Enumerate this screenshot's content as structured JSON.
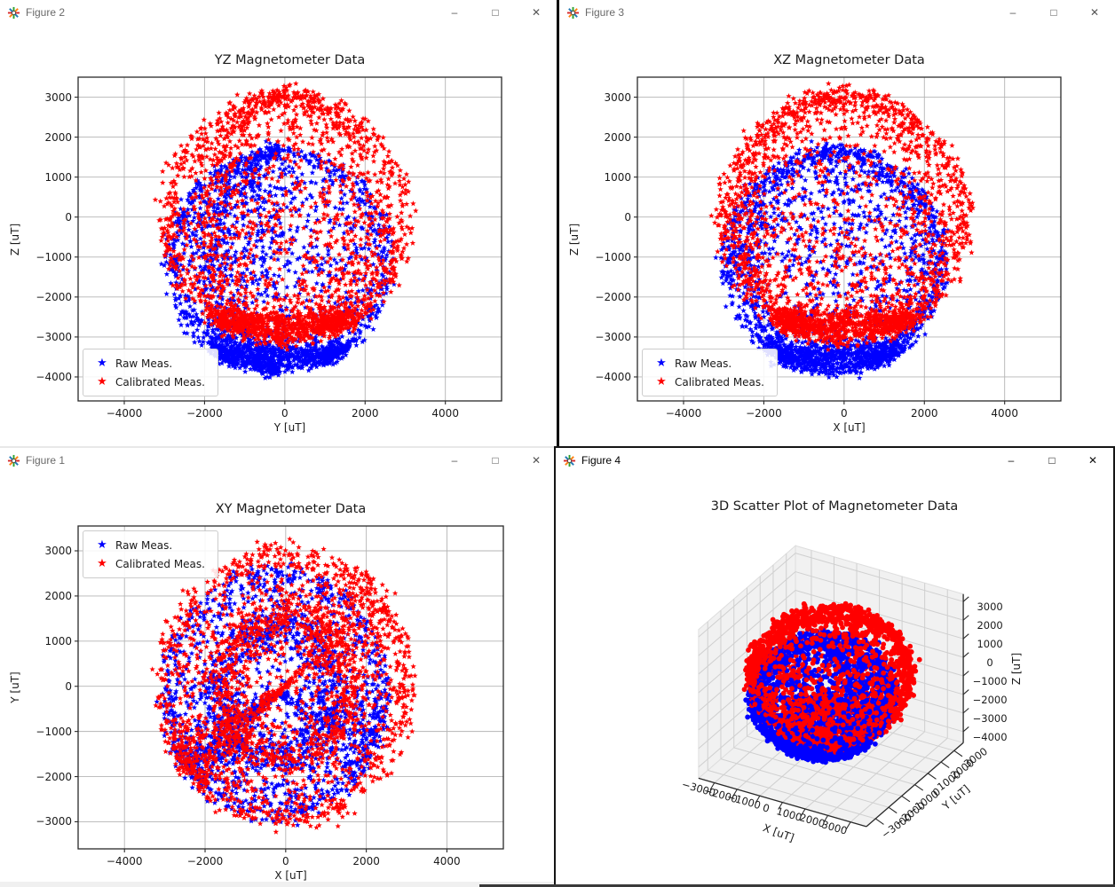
{
  "windows": [
    {
      "name": "figure-2",
      "title": "Figure 2",
      "active": false
    },
    {
      "name": "figure-3",
      "title": "Figure 3",
      "active": false
    },
    {
      "name": "figure-1",
      "title": "Figure 1",
      "active": false
    },
    {
      "name": "figure-4",
      "title": "Figure 4",
      "active": true
    }
  ],
  "window_controls": [
    {
      "name": "minimize",
      "glyph": "–"
    },
    {
      "name": "maximize",
      "glyph": "□"
    },
    {
      "name": "close",
      "glyph": "✕"
    }
  ],
  "colors": {
    "raw": "#0000ff",
    "calibrated": "#ff0000",
    "grid": "#b4b4b4",
    "spine": "#2a2a2a",
    "pane": "#f1f1f1",
    "pane_grid": "#cfcfcf",
    "axis_edge": "#2a2a2a",
    "title_text": "#1a1a1a",
    "inactive_window_title": "#6a6a6a",
    "active_window_title": "#000000"
  },
  "chart_data": [
    {
      "figure": "Figure 2",
      "type": "scatter",
      "title": "YZ Magnetometer Data",
      "xlabel": "Y [uT]",
      "ylabel": "Z [uT]",
      "xlim": [
        -5150,
        5400
      ],
      "ylim": [
        -4600,
        3500
      ],
      "xticks": [
        -4000,
        -2000,
        0,
        2000,
        4000
      ],
      "yticks": [
        3000,
        2000,
        1000,
        0,
        -1000,
        -2000,
        -3000,
        -4000
      ],
      "grid": true,
      "projection": [
        "y",
        "z"
      ],
      "legend": {
        "loc": "lower left",
        "entries": [
          {
            "label": "Raw Meas.",
            "marker": "star",
            "color": "#0000ff"
          },
          {
            "label": "Calibrated Meas.",
            "marker": "star",
            "color": "#ff0000"
          }
        ]
      }
    },
    {
      "figure": "Figure 3",
      "type": "scatter",
      "title": "XZ Magnetometer Data",
      "xlabel": "X [uT]",
      "ylabel": "Z [uT]",
      "xlim": [
        -5150,
        5400
      ],
      "ylim": [
        -4600,
        3500
      ],
      "xticks": [
        -4000,
        -2000,
        0,
        2000,
        4000
      ],
      "yticks": [
        3000,
        2000,
        1000,
        0,
        -1000,
        -2000,
        -3000,
        -4000
      ],
      "grid": true,
      "projection": [
        "x",
        "z"
      ],
      "legend": {
        "loc": "lower left",
        "entries": [
          {
            "label": "Raw Meas.",
            "marker": "star",
            "color": "#0000ff"
          },
          {
            "label": "Calibrated Meas.",
            "marker": "star",
            "color": "#ff0000"
          }
        ]
      }
    },
    {
      "figure": "Figure 1",
      "type": "scatter",
      "title": "XY Magnetometer Data",
      "xlabel": "X [uT]",
      "ylabel": "Y [uT]",
      "xlim": [
        -5150,
        5400
      ],
      "ylim": [
        -3600,
        3550
      ],
      "xticks": [
        -4000,
        -2000,
        0,
        2000,
        4000
      ],
      "yticks": [
        3000,
        2000,
        1000,
        0,
        -1000,
        -2000,
        -3000
      ],
      "grid": true,
      "projection": [
        "x",
        "y"
      ],
      "legend": {
        "loc": "upper left",
        "entries": [
          {
            "label": "Raw Meas.",
            "marker": "star",
            "color": "#0000ff"
          },
          {
            "label": "Calibrated Meas.",
            "marker": "star",
            "color": "#ff0000"
          }
        ]
      }
    },
    {
      "figure": "Figure 4",
      "type": "scatter3d",
      "title": "3D Scatter Plot of Magnetometer Data",
      "xlabel": "X [uT]",
      "ylabel": "Y [uT]",
      "zlabel": "Z [uT]",
      "xlim": [
        -3700,
        3700
      ],
      "ylim": [
        -3700,
        3700
      ],
      "zlim": [
        -4600,
        3400
      ],
      "xticks": [
        -3000,
        -2000,
        -1000,
        0,
        1000,
        2000,
        3000
      ],
      "yticks": [
        -3000,
        -2000,
        -1000,
        0,
        1000,
        2000,
        3000
      ],
      "zticks": [
        3000,
        2000,
        1000,
        0,
        -1000,
        -2000,
        -3000,
        -4000
      ],
      "view": {
        "elev": 30,
        "azim": -60
      }
    }
  ],
  "series": [
    {
      "name": "Raw Meas.",
      "color": "#0000ff",
      "marker": "star",
      "approx_points": 2400,
      "distribution": {
        "shape": "sphere_surface",
        "center": [
          -250,
          -150,
          -1100
        ],
        "radius": 2750,
        "radius_jitter": 0.035,
        "uniform_count": 1200,
        "bands": [
          {
            "phi": 2.58,
            "spread": 0.1,
            "count": 650
          }
        ],
        "meridians": [
          {
            "theta": 3.8,
            "spread": 0.14,
            "count": 320
          },
          {
            "theta": 5.9,
            "spread": 0.2,
            "count": 230
          }
        ]
      }
    },
    {
      "name": "Calibrated Meas.",
      "color": "#ff0000",
      "marker": "star",
      "approx_points": 2600,
      "distribution": {
        "shape": "sphere_surface",
        "center": [
          0,
          0,
          0
        ],
        "radius": 3060,
        "radius_jitter": 0.04,
        "uniform_count": 1350,
        "bands": [
          {
            "phi": 2.6,
            "spread": 0.09,
            "count": 700
          }
        ],
        "meridians": [
          {
            "theta": 3.75,
            "spread": 0.15,
            "count": 330
          },
          {
            "theta": 0.7,
            "spread": 0.2,
            "count": 220
          }
        ]
      }
    }
  ]
}
